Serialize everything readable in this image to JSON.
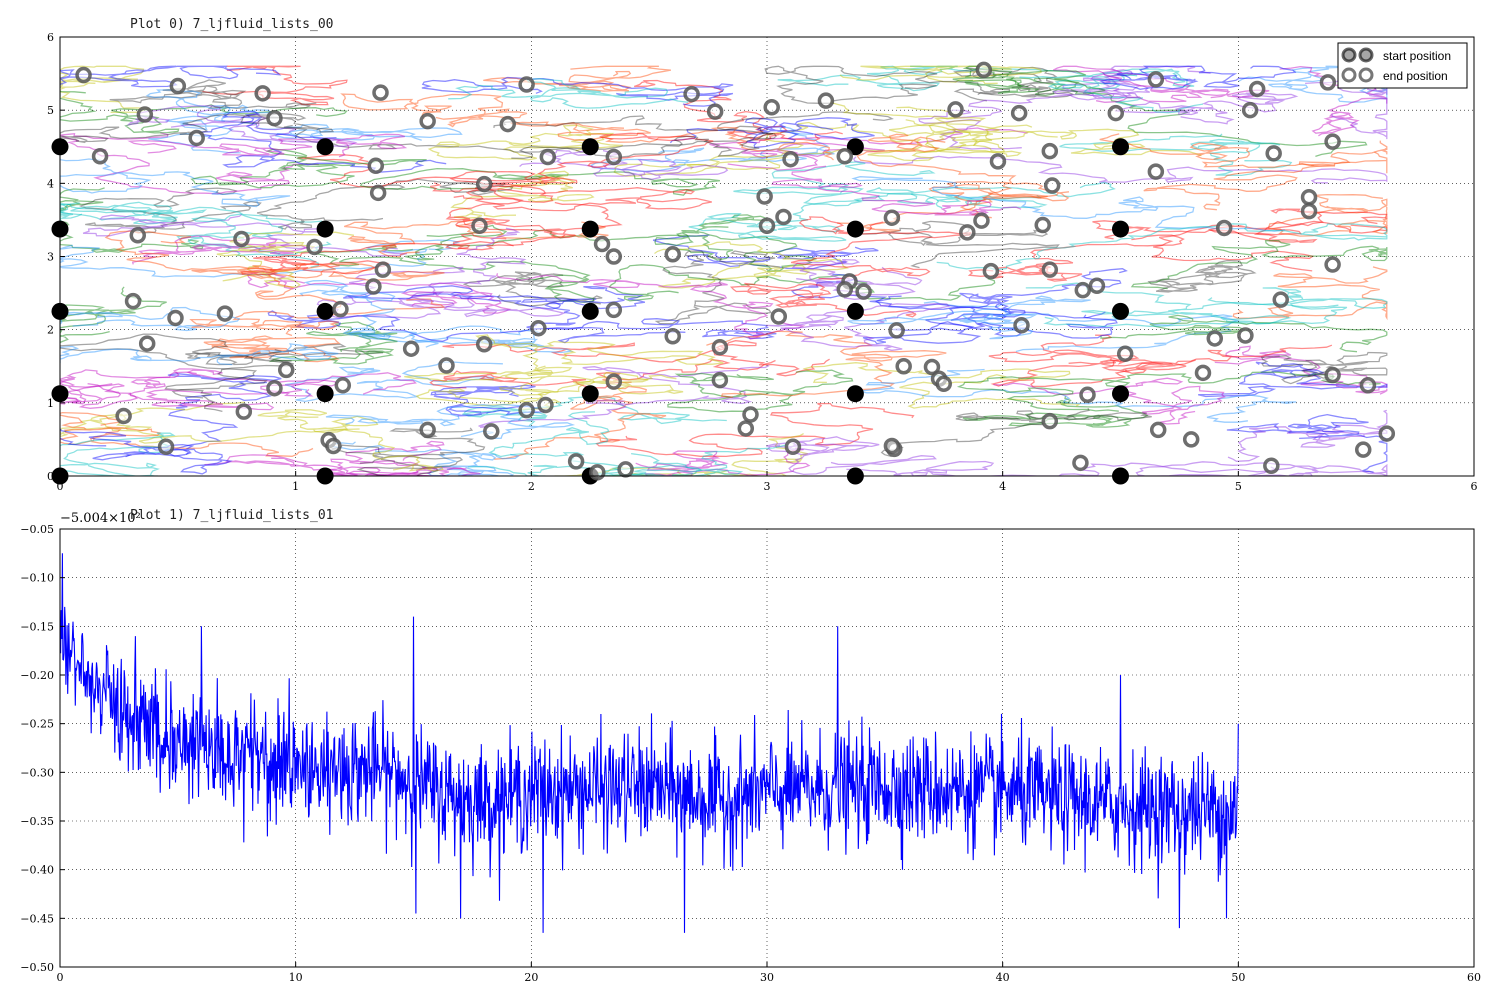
{
  "chart_data": [
    {
      "type": "scatter",
      "title": "Plot 0) 7_ljfluid_lists_00",
      "xlim": [
        0,
        6
      ],
      "ylim": [
        0,
        6
      ],
      "xticks": [
        "0",
        "1",
        "2",
        "3",
        "4",
        "5",
        "6"
      ],
      "yticks": [
        "0",
        "1",
        "2",
        "3",
        "4",
        "5",
        "6"
      ],
      "grid": true,
      "legend": {
        "placement": "top-right",
        "entries": [
          "start position",
          "end position"
        ]
      },
      "trajectory_box": {
        "xmax": 5.63,
        "ymax": 5.6
      },
      "start_positions": [
        [
          0,
          0
        ],
        [
          1.125,
          0
        ],
        [
          2.25,
          0
        ],
        [
          3.375,
          0
        ],
        [
          4.5,
          0
        ],
        [
          0,
          1.125
        ],
        [
          1.125,
          1.125
        ],
        [
          2.25,
          1.125
        ],
        [
          3.375,
          1.125
        ],
        [
          4.5,
          1.125
        ],
        [
          0,
          2.25
        ],
        [
          1.125,
          2.25
        ],
        [
          2.25,
          2.25
        ],
        [
          3.375,
          2.25
        ],
        [
          4.5,
          2.25
        ],
        [
          0,
          3.375
        ],
        [
          1.125,
          3.375
        ],
        [
          2.25,
          3.375
        ],
        [
          3.375,
          3.375
        ],
        [
          4.5,
          3.375
        ],
        [
          0,
          4.5
        ],
        [
          1.125,
          4.5
        ],
        [
          2.25,
          4.5
        ],
        [
          3.375,
          4.5
        ],
        [
          4.5,
          4.5
        ]
      ],
      "end_positions": [
        [
          0.1,
          5.48
        ],
        [
          0.5,
          5.33
        ],
        [
          0.86,
          5.23
        ],
        [
          1.36,
          5.24
        ],
        [
          1.98,
          5.35
        ],
        [
          2.68,
          5.22
        ],
        [
          3.25,
          5.13
        ],
        [
          3.92,
          5.55
        ],
        [
          4.65,
          5.42
        ],
        [
          5.08,
          5.29
        ],
        [
          5.38,
          5.38
        ],
        [
          0.36,
          4.94
        ],
        [
          0.58,
          4.62
        ],
        [
          0.91,
          4.89
        ],
        [
          1.56,
          4.85
        ],
        [
          1.9,
          4.81
        ],
        [
          2.78,
          4.98
        ],
        [
          3.02,
          5.04
        ],
        [
          3.8,
          5.01
        ],
        [
          4.07,
          4.96
        ],
        [
          4.48,
          4.96
        ],
        [
          5.05,
          5.0
        ],
        [
          0.17,
          4.37
        ],
        [
          1.34,
          4.24
        ],
        [
          2.07,
          4.36
        ],
        [
          2.35,
          4.36
        ],
        [
          3.33,
          4.37
        ],
        [
          3.1,
          4.33
        ],
        [
          3.98,
          4.3
        ],
        [
          4.2,
          4.44
        ],
        [
          4.65,
          4.16
        ],
        [
          5.15,
          4.41
        ],
        [
          5.4,
          4.57
        ],
        [
          1.35,
          3.87
        ],
        [
          1.8,
          3.99
        ],
        [
          2.99,
          3.82
        ],
        [
          4.21,
          3.97
        ],
        [
          5.3,
          3.81
        ],
        [
          5.3,
          3.62
        ],
        [
          0.33,
          3.29
        ],
        [
          0.77,
          3.24
        ],
        [
          1.08,
          3.13
        ],
        [
          1.78,
          3.42
        ],
        [
          2.35,
          3.0
        ],
        [
          2.6,
          3.03
        ],
        [
          2.3,
          3.17
        ],
        [
          3.0,
          3.42
        ],
        [
          3.07,
          3.54
        ],
        [
          3.53,
          3.53
        ],
        [
          3.91,
          3.49
        ],
        [
          3.85,
          3.33
        ],
        [
          4.17,
          3.43
        ],
        [
          4.94,
          3.39
        ],
        [
          1.37,
          2.82
        ],
        [
          1.33,
          2.59
        ],
        [
          3.35,
          2.66
        ],
        [
          3.33,
          2.55
        ],
        [
          3.41,
          2.52
        ],
        [
          3.95,
          2.8
        ],
        [
          4.2,
          2.82
        ],
        [
          4.34,
          2.54
        ],
        [
          4.4,
          2.6
        ],
        [
          5.4,
          2.89
        ],
        [
          5.18,
          2.41
        ],
        [
          0.31,
          2.39
        ],
        [
          0.49,
          2.16
        ],
        [
          0.7,
          2.22
        ],
        [
          1.19,
          2.28
        ],
        [
          2.35,
          2.27
        ],
        [
          2.03,
          2.02
        ],
        [
          2.6,
          1.91
        ],
        [
          3.05,
          2.18
        ],
        [
          3.55,
          1.99
        ],
        [
          4.08,
          2.06
        ],
        [
          0.37,
          1.81
        ],
        [
          1.49,
          1.74
        ],
        [
          1.64,
          1.51
        ],
        [
          1.8,
          1.8
        ],
        [
          2.8,
          1.76
        ],
        [
          3.58,
          1.5
        ],
        [
          3.7,
          1.49
        ],
        [
          4.52,
          1.67
        ],
        [
          4.9,
          1.88
        ],
        [
          5.03,
          1.92
        ],
        [
          0.96,
          1.45
        ],
        [
          0.91,
          1.2
        ],
        [
          1.2,
          1.24
        ],
        [
          2.35,
          1.29
        ],
        [
          2.8,
          1.31
        ],
        [
          3.73,
          1.33
        ],
        [
          3.75,
          1.26
        ],
        [
          4.36,
          1.11
        ],
        [
          4.85,
          1.41
        ],
        [
          5.4,
          1.38
        ],
        [
          5.55,
          1.24
        ],
        [
          0.27,
          0.82
        ],
        [
          0.78,
          0.88
        ],
        [
          1.56,
          0.63
        ],
        [
          1.83,
          0.61
        ],
        [
          1.98,
          0.9
        ],
        [
          2.06,
          0.97
        ],
        [
          2.93,
          0.84
        ],
        [
          2.91,
          0.65
        ],
        [
          3.11,
          0.4
        ],
        [
          3.54,
          0.37
        ],
        [
          4.2,
          0.75
        ],
        [
          4.66,
          0.63
        ],
        [
          4.8,
          0.5
        ],
        [
          0.45,
          0.4
        ],
        [
          1.14,
          0.49
        ],
        [
          1.16,
          0.41
        ],
        [
          2.19,
          0.2
        ],
        [
          2.4,
          0.09
        ],
        [
          2.28,
          0.05
        ],
        [
          3.53,
          0.41
        ],
        [
          4.33,
          0.18
        ],
        [
          5.14,
          0.14
        ],
        [
          5.53,
          0.36
        ],
        [
          5.63,
          0.58
        ]
      ]
    },
    {
      "type": "line",
      "title": "Plot 1) 7_ljfluid_lists_01",
      "offset_label": "−5.004×10²",
      "xlim": [
        0,
        60
      ],
      "ylim": [
        -0.5,
        -0.05
      ],
      "xticks": [
        "0",
        "10",
        "20",
        "30",
        "40",
        "50",
        "60"
      ],
      "yticks": [
        "−0.05",
        "−0.10",
        "−0.15",
        "−0.20",
        "−0.25",
        "−0.30",
        "−0.35",
        "−0.40",
        "−0.45",
        "−0.50"
      ],
      "grid": true,
      "line_color": "#0000ff",
      "x_range": [
        0,
        50
      ],
      "trend": [
        [
          0,
          -0.15
        ],
        [
          0.5,
          -0.18
        ],
        [
          1,
          -0.2
        ],
        [
          2,
          -0.22
        ],
        [
          3,
          -0.24
        ],
        [
          4,
          -0.26
        ],
        [
          6,
          -0.27
        ],
        [
          8,
          -0.28
        ],
        [
          10,
          -0.29
        ],
        [
          12,
          -0.295
        ],
        [
          14,
          -0.3
        ],
        [
          16,
          -0.32
        ],
        [
          18,
          -0.33
        ],
        [
          20,
          -0.32
        ],
        [
          25,
          -0.315
        ],
        [
          28,
          -0.33
        ],
        [
          30,
          -0.32
        ],
        [
          35,
          -0.315
        ],
        [
          40,
          -0.32
        ],
        [
          45,
          -0.335
        ],
        [
          50,
          -0.34
        ]
      ],
      "spikes": [
        [
          0.1,
          -0.075
        ],
        [
          0.2,
          -0.13
        ],
        [
          0.25,
          -0.21
        ],
        [
          3.2,
          -0.16
        ],
        [
          6.0,
          -0.15
        ],
        [
          15.0,
          -0.14
        ],
        [
          15.1,
          -0.445
        ],
        [
          17.0,
          -0.45
        ],
        [
          20.5,
          -0.465
        ],
        [
          26.5,
          -0.465
        ],
        [
          33.0,
          -0.15
        ],
        [
          35.0,
          -0.28
        ],
        [
          45.0,
          -0.2
        ],
        [
          47.5,
          -0.46
        ],
        [
          50.0,
          -0.25
        ],
        [
          49.5,
          -0.45
        ]
      ]
    }
  ]
}
